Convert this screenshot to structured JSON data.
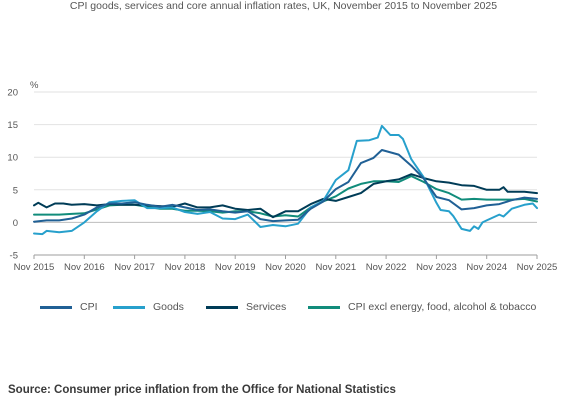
{
  "chart_data": {
    "type": "line",
    "title": "CPI goods, services and core annual inflation rates, UK, November 2015 to November 2025",
    "ylabel": "%",
    "xlabel": "",
    "ylim": [
      -5,
      20
    ],
    "yticks": [
      -5,
      0,
      5,
      10,
      15,
      20
    ],
    "xlim": [
      "Nov 2015",
      "Nov 2025"
    ],
    "xticks": [
      "Nov 2015",
      "Nov 2016",
      "Nov 2017",
      "Nov 2018",
      "Nov 2019",
      "Nov 2020",
      "Nov 2021",
      "Nov 2022",
      "Nov 2023",
      "Nov 2024",
      "Nov 2025"
    ],
    "grid": "horizontal",
    "legend": "bottom",
    "series": [
      {
        "name": "CPI",
        "color": "#206095",
        "points": [
          [
            "Nov 2015",
            0.1
          ],
          [
            "Feb 2016",
            0.3
          ],
          [
            "May 2016",
            0.3
          ],
          [
            "Aug 2016",
            0.6
          ],
          [
            "Nov 2016",
            1.2
          ],
          [
            "Feb 2017",
            2.3
          ],
          [
            "May 2017",
            2.9
          ],
          [
            "Aug 2017",
            2.9
          ],
          [
            "Nov 2017",
            3.1
          ],
          [
            "Feb 2018",
            2.7
          ],
          [
            "May 2018",
            2.4
          ],
          [
            "Aug 2018",
            2.7
          ],
          [
            "Nov 2018",
            2.3
          ],
          [
            "Feb 2019",
            1.9
          ],
          [
            "May 2019",
            2.0
          ],
          [
            "Aug 2019",
            1.7
          ],
          [
            "Nov 2019",
            1.5
          ],
          [
            "Feb 2020",
            1.7
          ],
          [
            "May 2020",
            0.5
          ],
          [
            "Aug 2020",
            0.2
          ],
          [
            "Nov 2020",
            0.3
          ],
          [
            "Feb 2021",
            0.4
          ],
          [
            "May 2021",
            2.1
          ],
          [
            "Aug 2021",
            3.2
          ],
          [
            "Nov 2021",
            5.1
          ],
          [
            "Feb 2022",
            6.2
          ],
          [
            "May 2022",
            9.1
          ],
          [
            "Aug 2022",
            9.9
          ],
          [
            "Oct 2022",
            11.1
          ],
          [
            "Feb 2023",
            10.4
          ],
          [
            "May 2023",
            8.7
          ],
          [
            "Aug 2023",
            6.7
          ],
          [
            "Nov 2023",
            3.9
          ],
          [
            "Feb 2024",
            3.4
          ],
          [
            "May 2024",
            2.0
          ],
          [
            "Aug 2024",
            2.2
          ],
          [
            "Nov 2024",
            2.6
          ],
          [
            "Feb 2025",
            2.8
          ],
          [
            "May 2025",
            3.4
          ],
          [
            "Aug 2025",
            3.8
          ],
          [
            "Nov 2025",
            3.6
          ]
        ]
      },
      {
        "name": "Goods",
        "color": "#27a0cc",
        "points": [
          [
            "Nov 2015",
            -1.7
          ],
          [
            "Jan 2016",
            -1.8
          ],
          [
            "Feb 2016",
            -1.3
          ],
          [
            "May 2016",
            -1.5
          ],
          [
            "Aug 2016",
            -1.3
          ],
          [
            "Nov 2016",
            0.0
          ],
          [
            "Feb 2017",
            1.7
          ],
          [
            "May 2017",
            3.1
          ],
          [
            "Aug 2017",
            3.3
          ],
          [
            "Nov 2017",
            3.4
          ],
          [
            "Feb 2018",
            2.2
          ],
          [
            "May 2018",
            2.2
          ],
          [
            "Aug 2018",
            2.3
          ],
          [
            "Nov 2018",
            1.6
          ],
          [
            "Feb 2019",
            1.3
          ],
          [
            "May 2019",
            1.6
          ],
          [
            "Aug 2019",
            0.6
          ],
          [
            "Nov 2019",
            0.5
          ],
          [
            "Feb 2020",
            1.2
          ],
          [
            "May 2020",
            -0.7
          ],
          [
            "Aug 2020",
            -0.4
          ],
          [
            "Nov 2020",
            -0.6
          ],
          [
            "Feb 2021",
            -0.2
          ],
          [
            "May 2021",
            2.3
          ],
          [
            "Aug 2021",
            3.3
          ],
          [
            "Nov 2021",
            6.5
          ],
          [
            "Feb 2022",
            8.0
          ],
          [
            "Apr 2022",
            12.5
          ],
          [
            "Jul 2022",
            12.6
          ],
          [
            "Sep 2022",
            13.0
          ],
          [
            "Oct 2022",
            14.8
          ],
          [
            "Dec 2022",
            13.4
          ],
          [
            "Feb 2023",
            13.4
          ],
          [
            "Mar 2023",
            12.8
          ],
          [
            "May 2023",
            9.7
          ],
          [
            "Aug 2023",
            6.9
          ],
          [
            "Nov 2023",
            3.0
          ],
          [
            "Dec 2023",
            1.9
          ],
          [
            "Feb 2024",
            1.7
          ],
          [
            "Mar 2024",
            1.0
          ],
          [
            "May 2024",
            -1.0
          ],
          [
            "Jul 2024",
            -1.3
          ],
          [
            "Aug 2024",
            -0.6
          ],
          [
            "Sep 2024",
            -1.0
          ],
          [
            "Oct 2024",
            0.0
          ],
          [
            "Nov 2024",
            0.3
          ],
          [
            "Feb 2025",
            1.2
          ],
          [
            "Mar 2025",
            0.9
          ],
          [
            "May 2025",
            2.1
          ],
          [
            "Aug 2025",
            2.7
          ],
          [
            "Oct 2025",
            2.9
          ],
          [
            "Nov 2025",
            2.2
          ]
        ]
      },
      {
        "name": "Services",
        "color": "#003c57",
        "points": [
          [
            "Nov 2015",
            2.6
          ],
          [
            "Dec 2015",
            3.0
          ],
          [
            "Feb 2016",
            2.3
          ],
          [
            "Apr 2016",
            2.9
          ],
          [
            "Jun 2016",
            2.9
          ],
          [
            "Aug 2016",
            2.7
          ],
          [
            "Nov 2016",
            2.8
          ],
          [
            "Feb 2017",
            2.6
          ],
          [
            "May 2017",
            2.8
          ],
          [
            "Aug 2017",
            2.7
          ],
          [
            "Nov 2017",
            2.7
          ],
          [
            "Feb 2018",
            2.6
          ],
          [
            "May 2018",
            2.5
          ],
          [
            "Aug 2018",
            2.4
          ],
          [
            "Nov 2018",
            2.9
          ],
          [
            "Feb 2019",
            2.3
          ],
          [
            "May 2019",
            2.3
          ],
          [
            "Aug 2019",
            2.6
          ],
          [
            "Nov 2019",
            2.1
          ],
          [
            "Feb 2020",
            1.9
          ],
          [
            "May 2020",
            2.1
          ],
          [
            "Aug 2020",
            0.8
          ],
          [
            "Nov 2020",
            1.7
          ],
          [
            "Feb 2021",
            1.7
          ],
          [
            "May 2021",
            2.8
          ],
          [
            "Aug 2021",
            3.6
          ],
          [
            "Nov 2021",
            3.3
          ],
          [
            "Feb 2022",
            3.9
          ],
          [
            "May 2022",
            4.5
          ],
          [
            "Aug 2022",
            5.9
          ],
          [
            "Nov 2022",
            6.3
          ],
          [
            "Feb 2023",
            6.6
          ],
          [
            "May 2023",
            7.4
          ],
          [
            "Aug 2023",
            6.8
          ],
          [
            "Nov 2023",
            6.3
          ],
          [
            "Feb 2024",
            6.1
          ],
          [
            "May 2024",
            5.7
          ],
          [
            "Aug 2024",
            5.6
          ],
          [
            "Nov 2024",
            5.0
          ],
          [
            "Feb 2025",
            5.0
          ],
          [
            "Mar 2025",
            5.4
          ],
          [
            "Apr 2025",
            4.7
          ],
          [
            "Aug 2025",
            4.7
          ],
          [
            "Nov 2025",
            4.5
          ]
        ]
      },
      {
        "name": "CPI excl energy, food, alcohol & tobacco",
        "color": "#118c7b",
        "points": [
          [
            "Nov 2015",
            1.2
          ],
          [
            "Feb 2016",
            1.2
          ],
          [
            "May 2016",
            1.2
          ],
          [
            "Aug 2016",
            1.3
          ],
          [
            "Nov 2016",
            1.4
          ],
          [
            "Feb 2017",
            2.0
          ],
          [
            "May 2017",
            2.6
          ],
          [
            "Aug 2017",
            2.7
          ],
          [
            "Nov 2017",
            2.7
          ],
          [
            "Feb 2018",
            2.4
          ],
          [
            "May 2018",
            2.1
          ],
          [
            "Aug 2018",
            2.1
          ],
          [
            "Nov 2018",
            1.8
          ],
          [
            "Feb 2019",
            1.8
          ],
          [
            "May 2019",
            1.7
          ],
          [
            "Aug 2019",
            1.5
          ],
          [
            "Nov 2019",
            1.7
          ],
          [
            "Feb 2020",
            1.7
          ],
          [
            "May 2020",
            1.4
          ],
          [
            "Aug 2020",
            0.9
          ],
          [
            "Nov 2020",
            1.1
          ],
          [
            "Feb 2021",
            0.9
          ],
          [
            "May 2021",
            2.3
          ],
          [
            "Aug 2021",
            3.2
          ],
          [
            "Nov 2021",
            4.0
          ],
          [
            "Feb 2022",
            5.2
          ],
          [
            "May 2022",
            5.9
          ],
          [
            "Aug 2022",
            6.3
          ],
          [
            "Nov 2022",
            6.3
          ],
          [
            "Feb 2023",
            6.2
          ],
          [
            "May 2023",
            7.1
          ],
          [
            "Aug 2023",
            6.2
          ],
          [
            "Nov 2023",
            5.1
          ],
          [
            "Feb 2024",
            4.5
          ],
          [
            "May 2024",
            3.5
          ],
          [
            "Aug 2024",
            3.6
          ],
          [
            "Nov 2024",
            3.5
          ],
          [
            "Feb 2025",
            3.5
          ],
          [
            "May 2025",
            3.5
          ],
          [
            "Aug 2025",
            3.6
          ],
          [
            "Nov 2025",
            3.2
          ]
        ]
      }
    ]
  },
  "source": "Source: Consumer price inflation from the Office for National Statistics"
}
